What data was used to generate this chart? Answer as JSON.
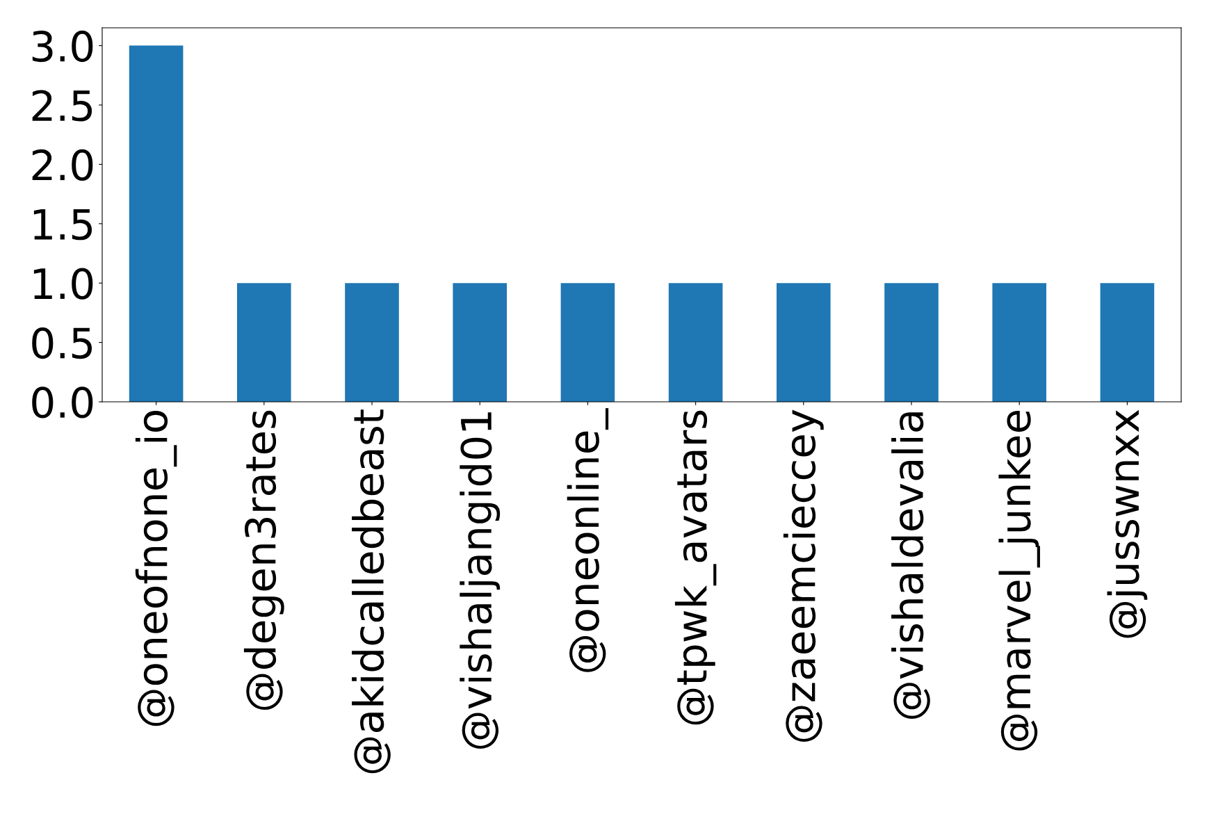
{
  "chart_data": {
    "type": "bar",
    "categories": [
      "@oneofnone_io",
      "@degen3rates",
      "@akidcalledbeast",
      "@vishaljangid01",
      "@oneonline_",
      "@tpwk_avatars",
      "@zaeemcieccey",
      "@vishaldevalia",
      "@marvel_junkee",
      "@jusswnxx"
    ],
    "values": [
      3,
      1,
      1,
      1,
      1,
      1,
      1,
      1,
      1,
      1
    ],
    "color": "#1f77b4",
    "ylim": [
      0,
      3.15
    ],
    "yticks": [
      {
        "value": 0,
        "label": "0.0"
      },
      {
        "value": 0.5,
        "label": "0.5"
      },
      {
        "value": 1,
        "label": "1.0"
      },
      {
        "value": 1.5,
        "label": "1.5"
      },
      {
        "value": 2,
        "label": "2.0"
      },
      {
        "value": 2.5,
        "label": "2.5"
      },
      {
        "value": 3,
        "label": "3.0"
      }
    ],
    "grid": false,
    "legend": false
  }
}
